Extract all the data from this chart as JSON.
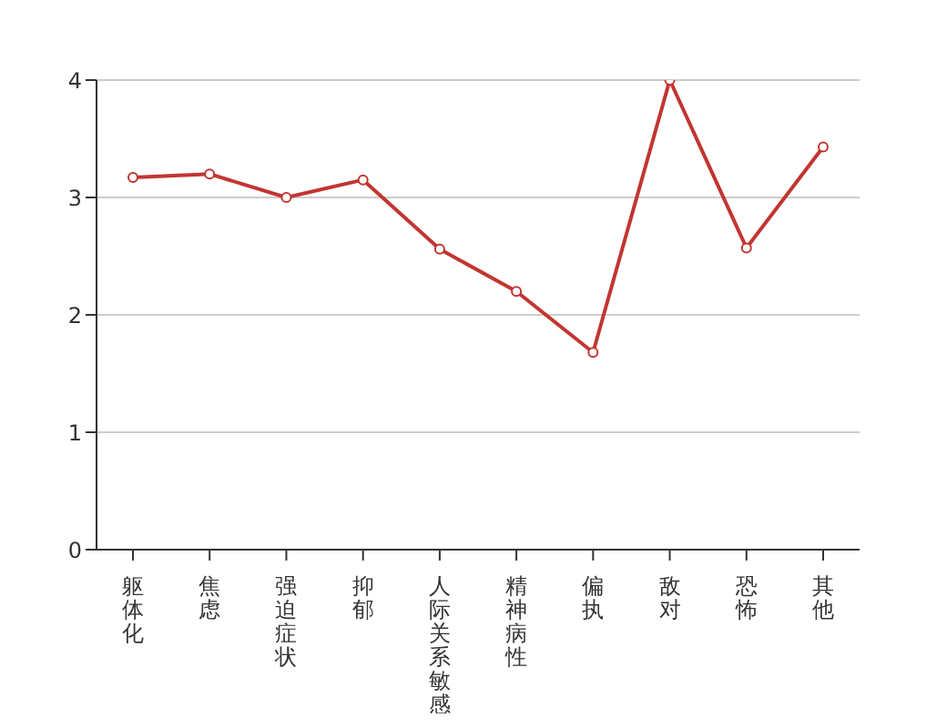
{
  "chart_data": {
    "type": "line",
    "categories": [
      "躯体化",
      "焦虑",
      "强迫症状",
      "抑郁",
      "人际关系敏感",
      "精神病性",
      "偏执",
      "敌对",
      "恐怖",
      "其他"
    ],
    "series": [
      {
        "color": "#c23531",
        "values": [
          3.17,
          3.2,
          3.0,
          3.15,
          2.56,
          2.2,
          1.68,
          4.0,
          2.57,
          3.43
        ]
      }
    ],
    "ylim": [
      0,
      4
    ],
    "yticks": [
      0,
      1,
      2,
      3,
      4
    ],
    "grid": "y",
    "legend": false,
    "marker": "circle",
    "line_style": "solid"
  }
}
